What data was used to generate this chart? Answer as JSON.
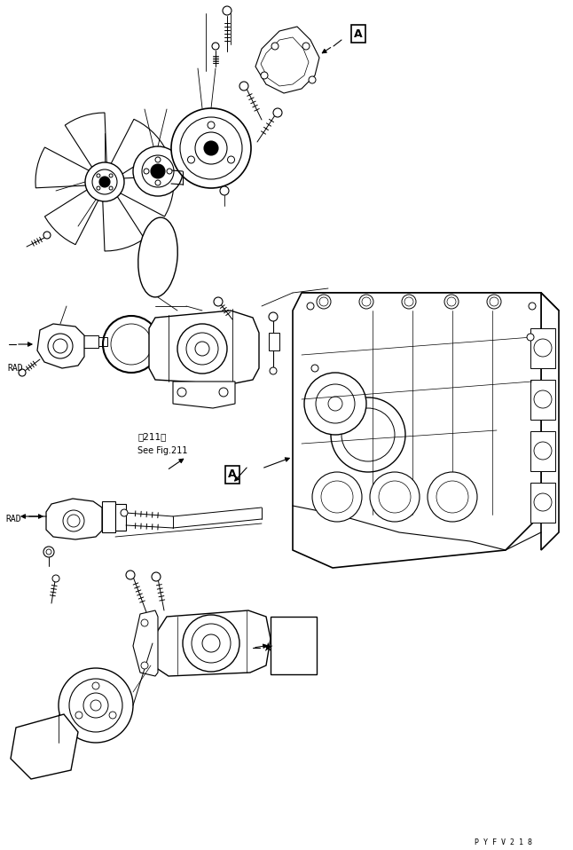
{
  "background_color": "#ffffff",
  "line_color": "#000000",
  "line_width": 0.7,
  "fig_width": 6.46,
  "fig_height": 9.58,
  "dpi": 100,
  "watermark": "P Y F V 2 1 8",
  "label_A1": "A",
  "label_A2": "A",
  "label_RAD1": "RAD",
  "label_RAD2": "RAD",
  "label_seefig": "See Fig.211",
  "label_fig211": "第211図",
  "text_color": "#000000"
}
